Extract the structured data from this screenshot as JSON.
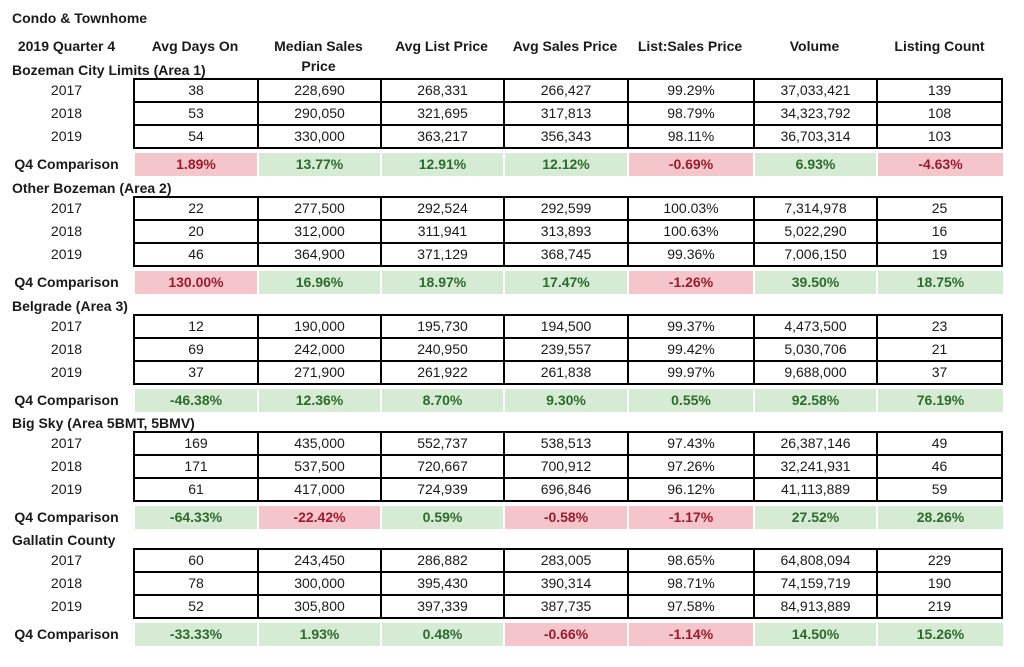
{
  "title": "Condo & Townhome",
  "period_label": "2019 Quarter 4",
  "columns": [
    "Avg Days On",
    "Median Sales Price",
    "Avg List Price",
    "Avg Sales Price",
    "List:Sales Price",
    "Volume",
    "Listing Count"
  ],
  "sections": [
    {
      "name": "Bozeman City Limits (Area 1)",
      "rows": [
        {
          "year": "2017",
          "values": [
            "38",
            "228,690",
            "268,331",
            "266,427",
            "99.29%",
            "37,033,421",
            "139"
          ]
        },
        {
          "year": "2018",
          "values": [
            "53",
            "290,050",
            "321,695",
            "317,813",
            "98.79%",
            "34,323,792",
            "108"
          ]
        },
        {
          "year": "2019",
          "values": [
            "54",
            "330,000",
            "363,217",
            "356,343",
            "98.11%",
            "36,703,314",
            "103"
          ]
        }
      ],
      "comparison": {
        "label": "Q4 Comparison",
        "values": [
          "1.89%",
          "13.77%",
          "12.91%",
          "12.12%",
          "-0.69%",
          "6.93%",
          "-4.63%"
        ],
        "status": [
          "neg",
          "pos",
          "pos",
          "pos",
          "neg",
          "pos",
          "neg"
        ]
      }
    },
    {
      "name": "Other Bozeman (Area 2)",
      "rows": [
        {
          "year": "2017",
          "values": [
            "22",
            "277,500",
            "292,524",
            "292,599",
            "100.03%",
            "7,314,978",
            "25"
          ]
        },
        {
          "year": "2018",
          "values": [
            "20",
            "312,000",
            "311,941",
            "313,893",
            "100.63%",
            "5,022,290",
            "16"
          ]
        },
        {
          "year": "2019",
          "values": [
            "46",
            "364,900",
            "371,129",
            "368,745",
            "99.36%",
            "7,006,150",
            "19"
          ]
        }
      ],
      "comparison": {
        "label": "Q4 Comparison",
        "values": [
          "130.00%",
          "16.96%",
          "18.97%",
          "17.47%",
          "-1.26%",
          "39.50%",
          "18.75%"
        ],
        "status": [
          "neg",
          "pos",
          "pos",
          "pos",
          "neg",
          "pos",
          "pos"
        ]
      }
    },
    {
      "name": "Belgrade (Area 3)",
      "rows": [
        {
          "year": "2017",
          "values": [
            "12",
            "190,000",
            "195,730",
            "194,500",
            "99.37%",
            "4,473,500",
            "23"
          ]
        },
        {
          "year": "2018",
          "values": [
            "69",
            "242,000",
            "240,950",
            "239,557",
            "99.42%",
            "5,030,706",
            "21"
          ]
        },
        {
          "year": "2019",
          "values": [
            "37",
            "271,900",
            "261,922",
            "261,838",
            "99.97%",
            "9,688,000",
            "37"
          ]
        }
      ],
      "comparison": {
        "label": "Q4 Comparison",
        "values": [
          "-46.38%",
          "12.36%",
          "8.70%",
          "9.30%",
          "0.55%",
          "92.58%",
          "76.19%"
        ],
        "status": [
          "pos",
          "pos",
          "pos",
          "pos",
          "pos",
          "pos",
          "pos"
        ]
      }
    },
    {
      "name": "Big Sky (Area 5BMT, 5BMV)",
      "rows": [
        {
          "year": "2017",
          "values": [
            "169",
            "435,000",
            "552,737",
            "538,513",
            "97.43%",
            "26,387,146",
            "49"
          ]
        },
        {
          "year": "2018",
          "values": [
            "171",
            "537,500",
            "720,667",
            "700,912",
            "97.26%",
            "32,241,931",
            "46"
          ]
        },
        {
          "year": "2019",
          "values": [
            "61",
            "417,000",
            "724,939",
            "696,846",
            "96.12%",
            "41,113,889",
            "59"
          ]
        }
      ],
      "comparison": {
        "label": "Q4 Comparison",
        "values": [
          "-64.33%",
          "-22.42%",
          "0.59%",
          "-0.58%",
          "-1.17%",
          "27.52%",
          "28.26%"
        ],
        "status": [
          "pos",
          "neg",
          "pos",
          "neg",
          "neg",
          "pos",
          "pos"
        ]
      }
    },
    {
      "name": "Gallatin County",
      "rows": [
        {
          "year": "2017",
          "values": [
            "60",
            "243,450",
            "286,882",
            "283,005",
            "98.65%",
            "64,808,094",
            "229"
          ]
        },
        {
          "year": "2018",
          "values": [
            "78",
            "300,000",
            "395,430",
            "390,314",
            "98.71%",
            "74,159,719",
            "190"
          ]
        },
        {
          "year": "2019",
          "values": [
            "52",
            "305,800",
            "397,339",
            "387,735",
            "97.58%",
            "84,913,889",
            "219"
          ]
        }
      ],
      "comparison": {
        "label": "Q4 Comparison",
        "values": [
          "-33.33%",
          "1.93%",
          "0.48%",
          "-0.66%",
          "-1.14%",
          "14.50%",
          "15.26%"
        ],
        "status": [
          "pos",
          "pos",
          "pos",
          "neg",
          "neg",
          "pos",
          "pos"
        ]
      }
    }
  ],
  "colors": {
    "positive_fill": "#d5ebd3",
    "positive_text": "#2d6b2d",
    "negative_fill": "#f4c6cc",
    "negative_text": "#9b1b2c"
  }
}
